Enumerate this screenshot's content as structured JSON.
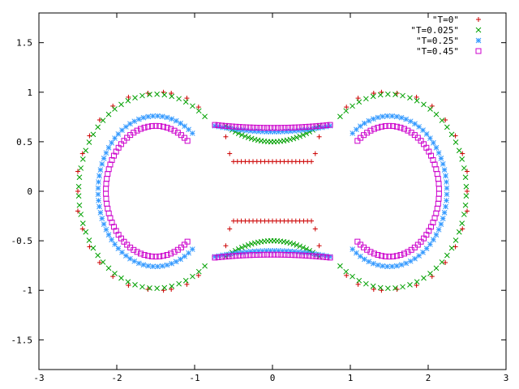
{
  "chart_data": {
    "type": "scatter",
    "title": "",
    "xlabel": "",
    "ylabel": "",
    "xlim": [
      -3,
      3
    ],
    "ylim": [
      -1.8,
      1.8
    ],
    "xticks": [
      -3,
      -2,
      -1,
      0,
      1,
      2,
      3
    ],
    "yticks": [
      -1.5,
      -1,
      -0.5,
      0,
      0.5,
      1,
      1.5
    ],
    "legend_position": "top-right",
    "grid": false,
    "series": [
      {
        "name": "\"T=0\"",
        "marker": "plus",
        "color": "#cc0000",
        "points": [
          [
            -2.5,
            0
          ],
          [
            -2.5,
            0.2
          ],
          [
            -2.5,
            -0.2
          ],
          [
            -2.44,
            0.38
          ],
          [
            -2.44,
            -0.38
          ],
          [
            -2.35,
            0.56
          ],
          [
            -2.35,
            -0.56
          ],
          [
            -2.22,
            0.72
          ],
          [
            -2.22,
            -0.72
          ],
          [
            -2.05,
            0.86
          ],
          [
            -2.05,
            -0.86
          ],
          [
            -1.85,
            0.95
          ],
          [
            -1.85,
            -0.95
          ],
          [
            -1.6,
            0.99
          ],
          [
            -1.6,
            -0.99
          ],
          [
            -1.4,
            1
          ],
          [
            -1.4,
            -1
          ],
          [
            -1.3,
            0.99
          ],
          [
            -1.3,
            -0.99
          ],
          [
            -1.1,
            0.94
          ],
          [
            -1.1,
            -0.94
          ],
          [
            -0.95,
            0.85
          ],
          [
            -0.95,
            -0.85
          ],
          [
            -0.6,
            0.55
          ],
          [
            -0.6,
            -0.55
          ],
          [
            -0.55,
            0.38
          ],
          [
            -0.55,
            -0.38
          ],
          [
            -0.5,
            0.3
          ],
          [
            -0.5,
            -0.3
          ],
          [
            -0.45,
            0.3
          ],
          [
            -0.4,
            0.3
          ],
          [
            -0.35,
            0.3
          ],
          [
            -0.3,
            0.3
          ],
          [
            -0.25,
            0.3
          ],
          [
            -0.2,
            0.3
          ],
          [
            -0.15,
            0.3
          ],
          [
            -0.1,
            0.3
          ],
          [
            -0.05,
            0.3
          ],
          [
            0,
            0.3
          ],
          [
            0.05,
            0.3
          ],
          [
            0.1,
            0.3
          ],
          [
            0.15,
            0.3
          ],
          [
            0.2,
            0.3
          ],
          [
            0.25,
            0.3
          ],
          [
            0.3,
            0.3
          ],
          [
            0.35,
            0.3
          ],
          [
            0.4,
            0.3
          ],
          [
            0.45,
            0.3
          ],
          [
            -0.45,
            -0.3
          ],
          [
            -0.4,
            -0.3
          ],
          [
            -0.35,
            -0.3
          ],
          [
            -0.3,
            -0.3
          ],
          [
            -0.25,
            -0.3
          ],
          [
            -0.2,
            -0.3
          ],
          [
            -0.15,
            -0.3
          ],
          [
            -0.1,
            -0.3
          ],
          [
            -0.05,
            -0.3
          ],
          [
            0,
            -0.3
          ],
          [
            0.05,
            -0.3
          ],
          [
            0.1,
            -0.3
          ],
          [
            0.15,
            -0.3
          ],
          [
            0.2,
            -0.3
          ],
          [
            0.25,
            -0.3
          ],
          [
            0.3,
            -0.3
          ],
          [
            0.35,
            -0.3
          ],
          [
            0.4,
            -0.3
          ],
          [
            0.45,
            -0.3
          ],
          [
            0.5,
            0.3
          ],
          [
            0.5,
            -0.3
          ],
          [
            0.55,
            0.38
          ],
          [
            0.55,
            -0.38
          ],
          [
            0.6,
            0.55
          ],
          [
            0.6,
            -0.55
          ],
          [
            0.95,
            0.85
          ],
          [
            0.95,
            -0.85
          ],
          [
            1.1,
            0.94
          ],
          [
            1.1,
            -0.94
          ],
          [
            1.3,
            0.99
          ],
          [
            1.3,
            -0.99
          ],
          [
            1.4,
            1
          ],
          [
            1.4,
            -1
          ],
          [
            1.6,
            0.99
          ],
          [
            1.6,
            -0.99
          ],
          [
            1.85,
            0.95
          ],
          [
            1.85,
            -0.95
          ],
          [
            2.05,
            0.86
          ],
          [
            2.05,
            -0.86
          ],
          [
            2.22,
            0.72
          ],
          [
            2.22,
            -0.72
          ],
          [
            2.35,
            0.56
          ],
          [
            2.35,
            -0.56
          ],
          [
            2.44,
            0.38
          ],
          [
            2.44,
            -0.38
          ],
          [
            2.5,
            0.2
          ],
          [
            2.5,
            -0.2
          ],
          [
            2.5,
            0
          ]
        ]
      },
      {
        "name": "\"T=0.025\"",
        "marker": "cross",
        "color": "#00a000",
        "outer": {
          "cx": 1.5,
          "rx": 0.99,
          "ry": 0.98,
          "n": 48
        },
        "inner_arc": {
          "xmax": 0.6,
          "ymin": 0.5,
          "ymax": 0.66,
          "n": 30
        }
      },
      {
        "name": "\"T=0.25\"",
        "marker": "star",
        "color": "#3399ff",
        "outer": {
          "cx": 1.5,
          "rx": 0.74,
          "ry": 0.76,
          "n": 56
        },
        "inner_arc": {
          "xmax": 0.74,
          "ymin": 0.6,
          "ymax": 0.66,
          "n": 30
        }
      },
      {
        "name": "\"T=0.45\"",
        "marker": "square",
        "color": "#cc00cc",
        "outer": {
          "cx": 1.5,
          "rx": 0.64,
          "ry": 0.66,
          "n": 60
        },
        "inner_arc": {
          "xmax": 0.74,
          "ymin": 0.64,
          "ymax": 0.67,
          "n": 34
        }
      }
    ]
  }
}
